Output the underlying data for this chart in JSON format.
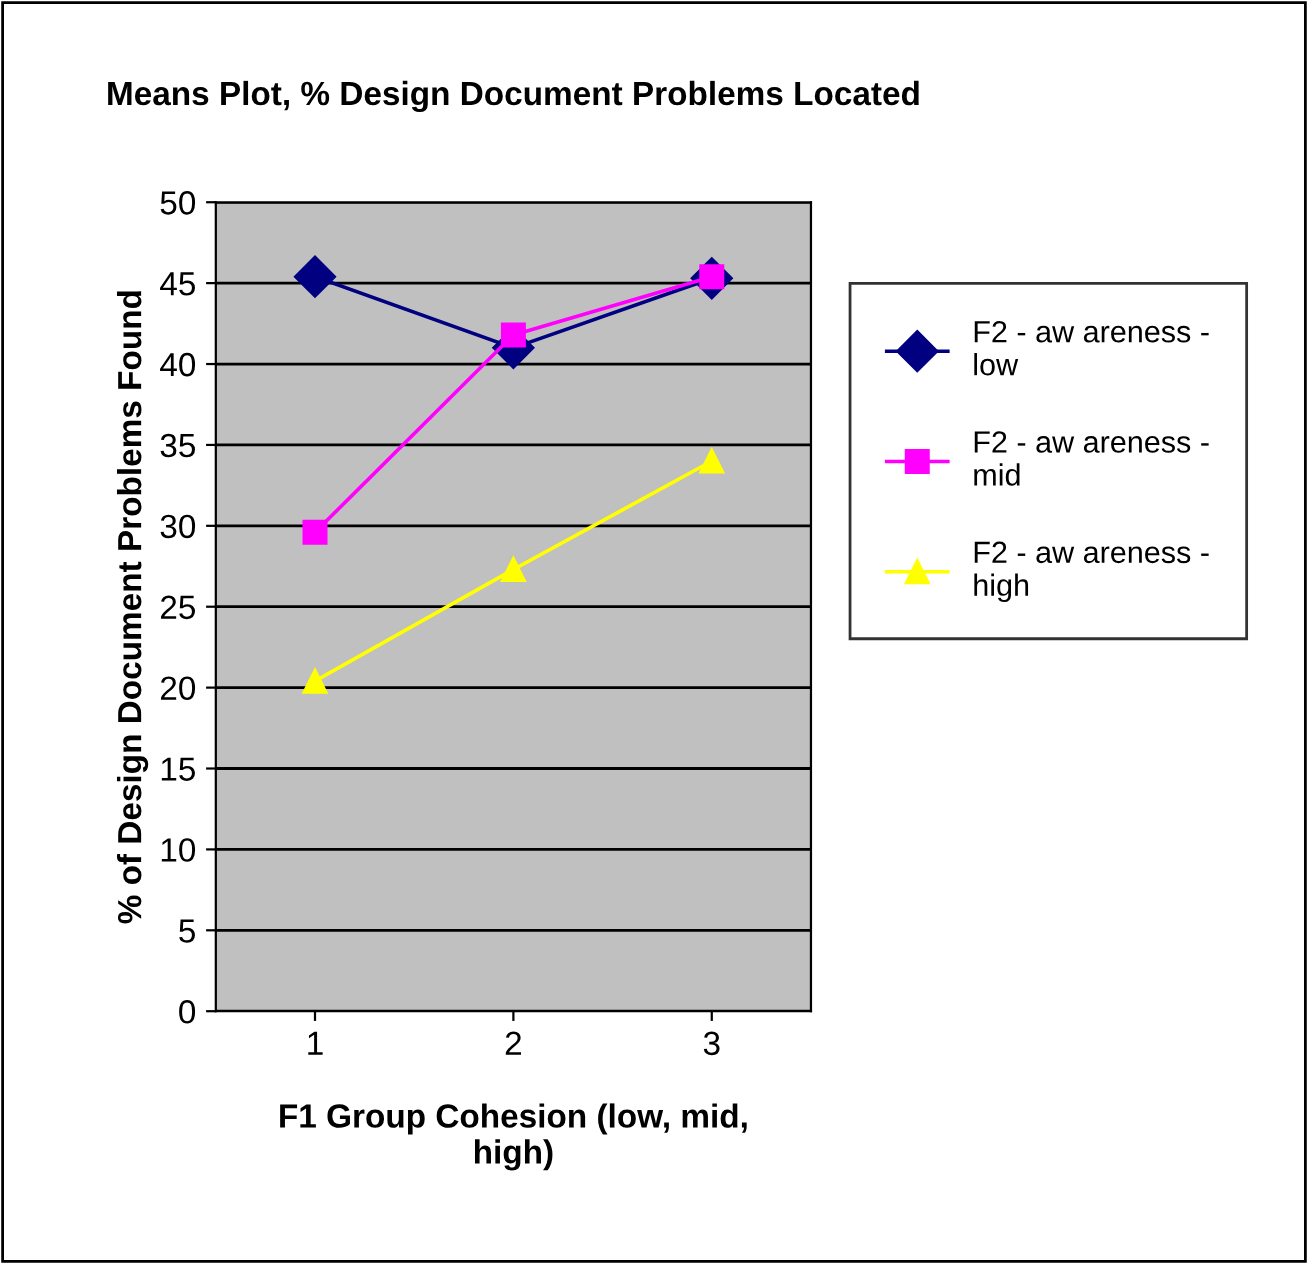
{
  "chart_data": {
    "type": "line",
    "title": "Means Plot, % Design Document Problems Located",
    "xlabel": "F1 Group Cohesion (low, mid,\nhigh)",
    "ylabel": "% of Design Document Problems Found",
    "categories": [
      "1",
      "2",
      "3"
    ],
    "series": [
      {
        "name": "F2 - aw areness -\nlow",
        "color": "#000080",
        "marker": "diamond",
        "values": [
          45.4,
          41.0,
          45.3
        ]
      },
      {
        "name": "F2 - aw areness -\nmid",
        "color": "#ff00ff",
        "marker": "square",
        "values": [
          29.6,
          41.8,
          45.4
        ]
      },
      {
        "name": "F2 - aw areness -\nhigh",
        "color": "#ffff00",
        "marker": "triangle",
        "values": [
          20.4,
          27.3,
          34.0
        ]
      }
    ],
    "ylim": [
      0,
      50
    ],
    "yticks": [
      0,
      5,
      10,
      15,
      20,
      25,
      30,
      35,
      40,
      45,
      50
    ],
    "grid": "y",
    "legend": "right",
    "line_style": "solid"
  }
}
